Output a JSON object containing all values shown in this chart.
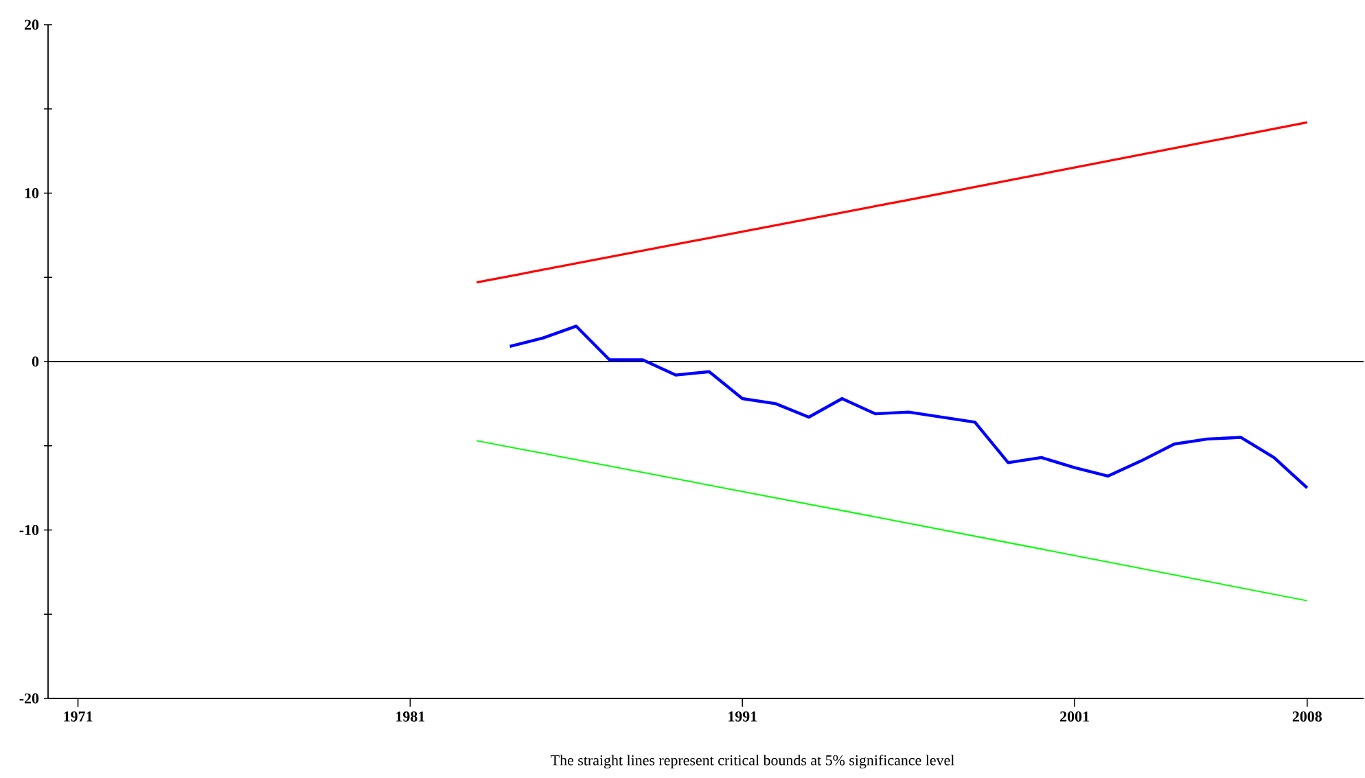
{
  "chart_data": {
    "type": "line",
    "xlim": [
      1970.1,
      2009.7
    ],
    "ylim": [
      -20,
      20
    ],
    "xticks": [
      1971,
      1981,
      1991,
      2001,
      2008
    ],
    "yticks": [
      -20,
      {
        "value": -15,
        "label": null
      },
      -10,
      {
        "value": -5,
        "label": null
      },
      0,
      {
        "value": 5,
        "label": null
      },
      10,
      {
        "value": 15,
        "label": null
      },
      20
    ],
    "series": [
      {
        "color": "#0000ff",
        "x": [
          1984,
          1985,
          1986,
          1987,
          1988,
          1989,
          1990,
          1991,
          1992,
          1993,
          1994,
          1995,
          1996,
          1997,
          1998,
          1999,
          2000,
          2001,
          2002,
          2003,
          2004,
          2005,
          2006,
          2007,
          2008
        ],
        "values": [
          0.9,
          1.4,
          2.1,
          0.1,
          0.1,
          -0.8,
          -0.6,
          -2.2,
          -2.5,
          -3.3,
          -2.2,
          -3.1,
          -3.0,
          -3.3,
          -3.6,
          -6.0,
          -5.7,
          -6.3,
          -6.8,
          -5.9,
          -4.9,
          -4.6,
          -4.5,
          -5.7,
          -7.5
        ]
      },
      {
        "color": "#ff0000",
        "x": [
          1983,
          1996,
          2008
        ],
        "values": [
          4.7,
          9.6,
          14.2
        ]
      },
      {
        "color": "#00ff00",
        "x": [
          1983,
          1996,
          2008
        ],
        "values": [
          -4.7,
          -9.6,
          -14.2
        ]
      }
    ],
    "ref_lines": [
      {
        "axis": "y",
        "value": 0,
        "color": "#000000"
      }
    ],
    "annotations": [
      "The straight lines represent critical bounds at 5% significance level"
    ]
  }
}
